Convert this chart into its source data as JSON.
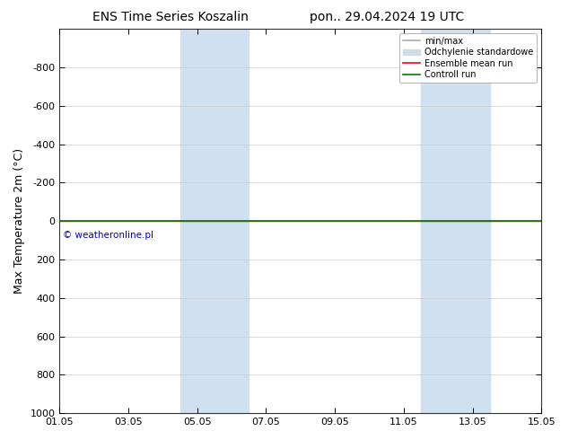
{
  "title_left": "ENS Time Series Koszalin",
  "title_right": "pon.. 29.04.2024 19 UTC",
  "ylabel": "Max Temperature 2m (°C)",
  "ylim_bottom": 1000,
  "ylim_top": -1000,
  "yticks": [
    -800,
    -600,
    -400,
    -200,
    0,
    200,
    400,
    600,
    800,
    1000
  ],
  "xtick_labels": [
    "01.05",
    "03.05",
    "05.05",
    "07.05",
    "09.05",
    "11.05",
    "13.05",
    "15.05"
  ],
  "xtick_positions": [
    0,
    2,
    4,
    6,
    8,
    10,
    12,
    14
  ],
  "x_min": 0,
  "x_max": 14,
  "shaded_bands": [
    {
      "x_start": 3.5,
      "x_end": 5.5
    },
    {
      "x_start": 10.5,
      "x_end": 12.5
    }
  ],
  "shade_color": "#cfe0f0",
  "ensemble_mean_color": "#ff0000",
  "control_run_color": "#008000",
  "watermark_text": "© weatheronline.pl",
  "watermark_color": "#0000cc",
  "legend_items": [
    {
      "label": "min/max",
      "color": "#aaaaaa",
      "lw": 1.2,
      "type": "line"
    },
    {
      "label": "Odchylenie standardowe",
      "color": "#d0dce8",
      "lw": 8,
      "type": "patch"
    },
    {
      "label": "Ensemble mean run",
      "color": "#ff0000",
      "lw": 1.2,
      "type": "line"
    },
    {
      "label": "Controll run",
      "color": "#008000",
      "lw": 1.2,
      "type": "line"
    }
  ],
  "background_color": "#ffffff",
  "title_fontsize": 10,
  "tick_fontsize": 8,
  "ylabel_fontsize": 9
}
